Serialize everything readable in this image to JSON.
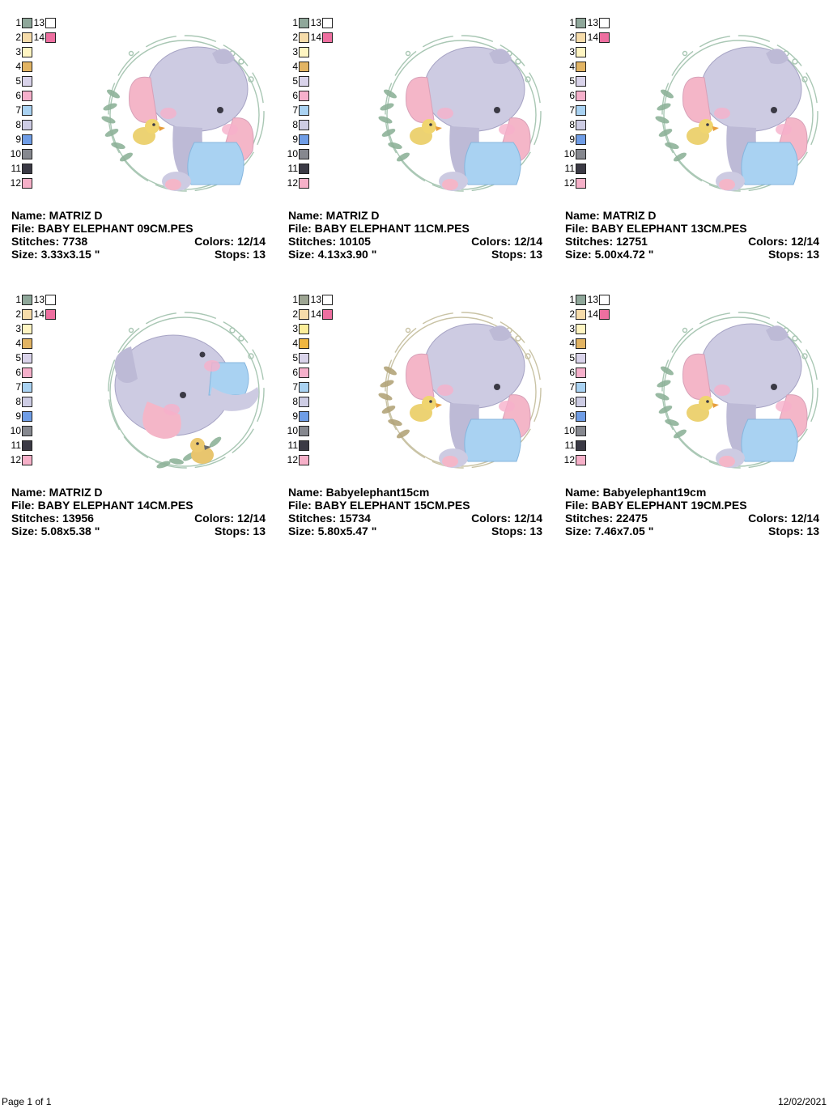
{
  "labels": {
    "name": "Name:",
    "file": "File:",
    "stitches": "Stitches:",
    "colors": "Colors:",
    "size": "Size:",
    "stops": "Stops:"
  },
  "palette_variants": {
    "standard": [
      "#8fa79a",
      "#f6dcaa",
      "#fff5c2",
      "#e2b463",
      "#d9d3ea",
      "#f6b0cb",
      "#a9d2f2",
      "#cdcce4",
      "#6f9de6",
      "#86888f",
      "#3b3a45",
      "#f6b0c8",
      "#ffffff",
      "#ee6fa0"
    ],
    "variant5": [
      "#9da593",
      "#f6dcaa",
      "#fcee9a",
      "#f0b640",
      "#d9d3ea",
      "#f6b0cb",
      "#a9d2f2",
      "#cdcce4",
      "#6f9de6",
      "#86888f",
      "#3b3a45",
      "#f6b0c8",
      "#ffffff",
      "#ee6fa0"
    ]
  },
  "designs": [
    {
      "name": "MATRIZ D",
      "file": "BABY ELEPHANT 09CM.PES",
      "stitches": "7738",
      "colors": "12/14",
      "size": "3.33x3.15 \"",
      "stops": "13",
      "palette": "standard",
      "leaf_color": "#8fb39a",
      "ring_color": "#a9c7b4",
      "pose": "sitting"
    },
    {
      "name": "MATRIZ D",
      "file": "BABY ELEPHANT 11CM.PES",
      "stitches": "10105",
      "colors": "12/14",
      "size": "4.13x3.90 \"",
      "stops": "13",
      "palette": "standard",
      "leaf_color": "#8fb39a",
      "ring_color": "#a9c7b4",
      "pose": "sitting"
    },
    {
      "name": "MATRIZ D",
      "file": "BABY ELEPHANT 13CM.PES",
      "stitches": "12751",
      "colors": "12/14",
      "size": "5.00x4.72 \"",
      "stops": "13",
      "palette": "standard",
      "leaf_color": "#8fb39a",
      "ring_color": "#a9c7b4",
      "pose": "sitting"
    },
    {
      "name": "MATRIZ D",
      "file": "BABY ELEPHANT 14CM.PES",
      "stitches": "13956",
      "colors": "12/14",
      "size": "5.08x5.38 \"",
      "stops": "13",
      "palette": "standard",
      "leaf_color": "#8fb39a",
      "ring_color": "#a9c7b4",
      "pose": "lying"
    },
    {
      "name": "Babyelephant15cm",
      "file": "BABY ELEPHANT 15CM.PES",
      "stitches": "15734",
      "colors": "12/14",
      "size": "5.80x5.47 \"",
      "stops": "13",
      "palette": "variant5",
      "leaf_color": "#b3a57a",
      "ring_color": "#c9c3a5",
      "pose": "sitting"
    },
    {
      "name": "Babyelephant19cm",
      "file": "BABY ELEPHANT 19CM.PES",
      "stitches": "22475",
      "colors": "12/14",
      "size": "7.46x7.05 \"",
      "stops": "13",
      "palette": "standard",
      "leaf_color": "#8fb39a",
      "ring_color": "#a9c7b4",
      "pose": "sitting"
    }
  ],
  "footer": {
    "page": "Page 1 of 1",
    "date": "12/02/2021"
  }
}
